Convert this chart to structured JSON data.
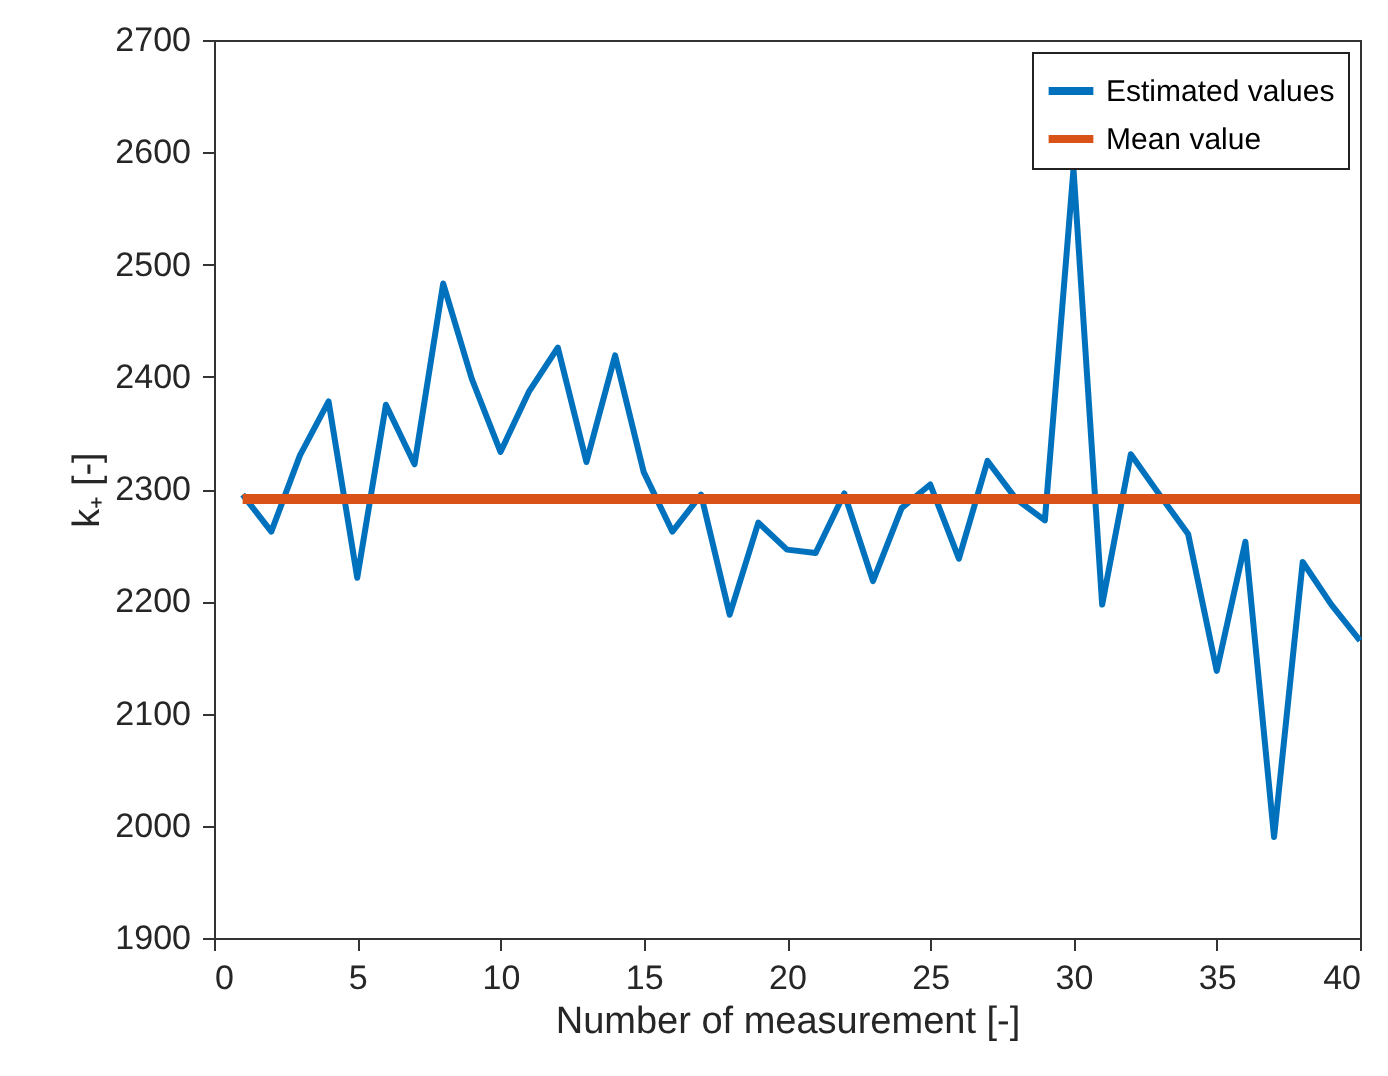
{
  "chart_data": {
    "type": "line",
    "xlabel": "Number of measurement [-]",
    "ylabel": "k₊ [-]",
    "xlim": [
      0,
      40
    ],
    "xticks": [
      0,
      5,
      10,
      15,
      20,
      25,
      30,
      35,
      40
    ],
    "ylim": [
      1900,
      2700
    ],
    "yticks": [
      1900,
      2000,
      2100,
      2200,
      2300,
      2400,
      2500,
      2600,
      2700
    ],
    "grid": false,
    "legend": "top right",
    "line_style": "solid",
    "marker": "none",
    "series": [
      {
        "name": "Estimated values",
        "color": "#0072bd",
        "x": [
          1,
          2,
          3,
          4,
          5,
          6,
          7,
          8,
          9,
          10,
          11,
          12,
          13,
          14,
          15,
          16,
          17,
          18,
          19,
          20,
          21,
          22,
          23,
          24,
          25,
          26,
          27,
          28,
          29,
          30,
          31,
          32,
          33,
          34,
          35,
          36,
          37,
          38,
          39,
          40
        ],
        "values": [
          2295,
          2262,
          2330,
          2378,
          2221,
          2375,
          2322,
          2483,
          2398,
          2333,
          2387,
          2426,
          2324,
          2419,
          2315,
          2262,
          2295,
          2188,
          2270,
          2246,
          2243,
          2296,
          2218,
          2283,
          2304,
          2238,
          2325,
          2291,
          2272,
          2585,
          2197,
          2331,
          2295,
          2260,
          2138,
          2253,
          1990,
          2235,
          2197,
          2165
        ]
      },
      {
        "name": "Mean value",
        "color": "#d95319",
        "x": [
          1,
          40
        ],
        "values": [
          2291,
          2291
        ]
      }
    ]
  }
}
